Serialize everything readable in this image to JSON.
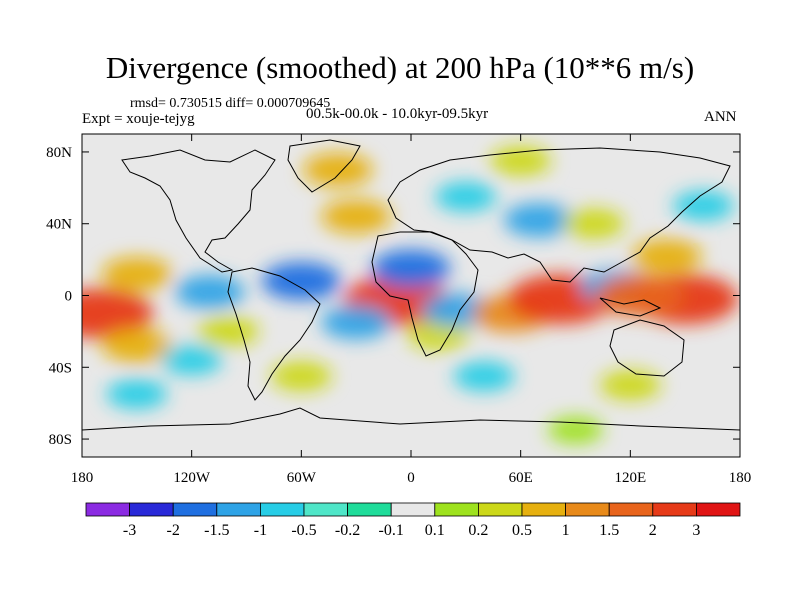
{
  "header": {
    "stats": "rmsd= 0.730515  diff= 0.000709645",
    "experiment": "Expt = xouje-tejyg",
    "period": "00.5k-00.0k - 10.0kyr-09.5kyr",
    "season": "ANN"
  },
  "chart_data": {
    "type": "heatmap",
    "title": "Divergence (smoothed) at 200 hPa (10**6 m/s)",
    "x_ticks": [
      {
        "value": -180,
        "label": "180"
      },
      {
        "value": -120,
        "label": "120W"
      },
      {
        "value": -60,
        "label": "60W"
      },
      {
        "value": 0,
        "label": "0"
      },
      {
        "value": 60,
        "label": "60E"
      },
      {
        "value": 120,
        "label": "120E"
      },
      {
        "value": 180,
        "label": "180"
      }
    ],
    "y_ticks": [
      {
        "value": 80,
        "label": "80N"
      },
      {
        "value": 40,
        "label": "40N"
      },
      {
        "value": 0,
        "label": "0"
      },
      {
        "value": -40,
        "label": "40S"
      },
      {
        "value": -80,
        "label": "80S"
      }
    ],
    "xlim": [
      -180,
      180
    ],
    "ylim": [
      -90,
      90
    ],
    "colorbar": {
      "labels": [
        "-3",
        "-2",
        "-1.5",
        "-1",
        "-0.5",
        "-0.2",
        "-0.1",
        "0.1",
        "0.2",
        "0.5",
        "1",
        "1.5",
        "2",
        "3"
      ],
      "colors": [
        "#8b2be2",
        "#2929d8",
        "#1f6fe0",
        "#2ea3e6",
        "#27cde6",
        "#4fe6c8",
        "#1fdc9a",
        "#e8e8e8",
        "#9ee21e",
        "#ccd819",
        "#e6b00f",
        "#e88a1a",
        "#e8641c",
        "#e63a18",
        "#e01414"
      ]
    },
    "background_color": "#e8e8e8",
    "anomalies": [
      {
        "lon": -170,
        "lat": -10,
        "value": 3
      },
      {
        "lon": -150,
        "lat": 12,
        "value": 1
      },
      {
        "lon": -110,
        "lat": 2,
        "value": -1
      },
      {
        "lon": -150,
        "lat": -28,
        "value": 1
      },
      {
        "lon": -120,
        "lat": -36,
        "value": -0.5
      },
      {
        "lon": -100,
        "lat": -20,
        "value": 0.5
      },
      {
        "lon": -8,
        "lat": -3,
        "value": 3
      },
      {
        "lon": -30,
        "lat": -15,
        "value": -1
      },
      {
        "lon": 15,
        "lat": -22,
        "value": 0.5
      },
      {
        "lon": 25,
        "lat": -8,
        "value": -1
      },
      {
        "lon": 55,
        "lat": -10,
        "value": 1.5
      },
      {
        "lon": 82,
        "lat": -2,
        "value": 3
      },
      {
        "lon": 112,
        "lat": 5,
        "value": -1
      },
      {
        "lon": 150,
        "lat": -2,
        "value": 3
      },
      {
        "lon": 125,
        "lat": 0,
        "value": 2
      },
      {
        "lon": 140,
        "lat": 22,
        "value": 1
      },
      {
        "lon": -60,
        "lat": 8,
        "value": -1.5
      },
      {
        "lon": 0,
        "lat": 15,
        "value": -1.5
      },
      {
        "lon": -30,
        "lat": 44,
        "value": 1
      },
      {
        "lon": 70,
        "lat": 42,
        "value": -1
      },
      {
        "lon": 100,
        "lat": 40,
        "value": 0.5
      },
      {
        "lon": 30,
        "lat": 55,
        "value": -0.5
      },
      {
        "lon": -40,
        "lat": 70,
        "value": 1
      },
      {
        "lon": 60,
        "lat": 75,
        "value": 0.5
      },
      {
        "lon": 160,
        "lat": 50,
        "value": -0.5
      },
      {
        "lon": -60,
        "lat": -45,
        "value": 0.5
      },
      {
        "lon": 40,
        "lat": -45,
        "value": -0.5
      },
      {
        "lon": 120,
        "lat": -50,
        "value": 0.5
      },
      {
        "lon": -150,
        "lat": -55,
        "value": -0.5
      },
      {
        "lon": 90,
        "lat": -75,
        "value": 0.2
      }
    ]
  }
}
